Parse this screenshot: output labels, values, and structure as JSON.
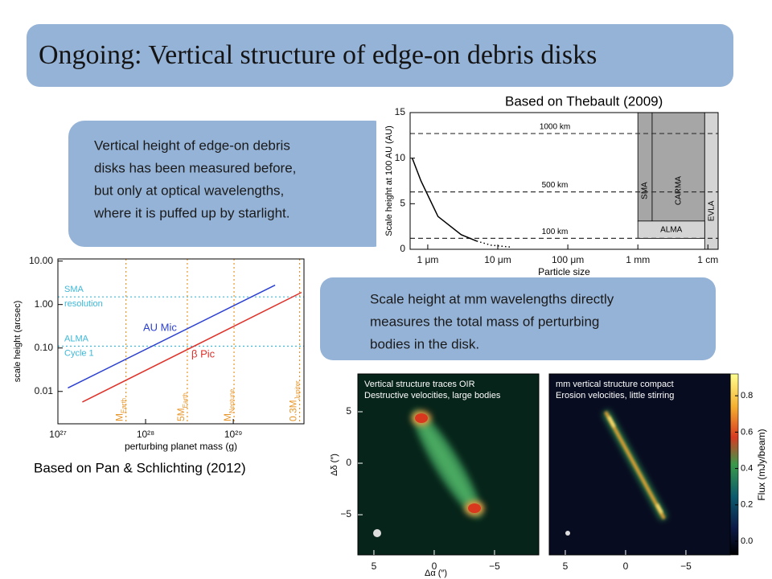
{
  "title": "Ongoing: Vertical structure of edge-on debris disks",
  "captions": [
    "Based on Thebault (2009)",
    "Based on Pan & Schlichting (2012)"
  ],
  "text_boxes": [
    {
      "lines": [
        "Vertical height of edge-on debris",
        "disks has been measured before,",
        "but only at optical wavelengths,",
        "where it is puffed up by starlight."
      ]
    },
    {
      "lines": [
        "Scale height at mm wavelengths directly",
        "measures the total mass of perturbing",
        "bodies in the disk."
      ]
    }
  ],
  "chart_data": [
    {
      "type": "line",
      "x_label": "Particle size",
      "y_label": "Scale height at 100 AU (AU)",
      "log_x": true,
      "xlim": [
        0.56,
        14000
      ],
      "xticks": [
        {
          "value": 1,
          "label": "1 μm"
        },
        {
          "value": 10,
          "label": "10 μm"
        },
        {
          "value": 100,
          "label": "100 μm"
        },
        {
          "value": 1000,
          "label": "1 mm"
        },
        {
          "value": 10000,
          "label": "1 cm"
        }
      ],
      "ylim": [
        0,
        15
      ],
      "yticks": [
        0,
        5,
        10,
        15
      ],
      "series": [
        {
          "color": "#000000",
          "style": "solid",
          "x": [
            0.6,
            0.8,
            1.4,
            3,
            5
          ],
          "values": [
            10,
            7.5,
            3.6,
            1.6,
            0.9
          ]
        },
        {
          "color": "#000000",
          "style": "dotted",
          "x": [
            5,
            8,
            15
          ],
          "values": [
            0.9,
            0.45,
            0.25
          ]
        }
      ],
      "hlines": [
        {
          "value": 12.7,
          "label": "1000 km"
        },
        {
          "value": 6.3,
          "label": "500 km"
        },
        {
          "value": 1.2,
          "label": "100 km"
        }
      ],
      "regions": [
        {
          "label": "SMA",
          "x": [
            1000,
            1600
          ],
          "y": [
            3.1,
            15
          ],
          "color": "#a6a6a6"
        },
        {
          "label": "CARMA",
          "x": [
            1600,
            9000
          ],
          "y": [
            3.1,
            15
          ],
          "color": "#a6a6a6"
        },
        {
          "label": "EVLA",
          "x": [
            9000,
            14000
          ],
          "y": [
            0,
            15
          ],
          "color": "#d4d4d4"
        },
        {
          "label": "ALMA",
          "x": [
            1000,
            9000
          ],
          "y": [
            1.2,
            3.1
          ],
          "color": "#d4d4d4"
        }
      ]
    },
    {
      "type": "line",
      "x_label": "perturbing planet mass (g)",
      "y_label": "scale height (arcsec)",
      "log_x": true,
      "log_y": true,
      "xlim": [
        1e+27,
        6.4e+29
      ],
      "xticks": [
        {
          "value": 1e+27,
          "label": "10²⁷"
        },
        {
          "value": 1e+28,
          "label": "10²⁸"
        },
        {
          "value": 1e+29,
          "label": "10²⁹"
        }
      ],
      "ylim": [
        0.0018,
        11.2
      ],
      "yticks": [
        {
          "value": 0.01,
          "label": "0.01"
        },
        {
          "value": 0.1,
          "label": "0.10"
        },
        {
          "value": 1,
          "label": "1.00"
        },
        {
          "value": 10,
          "label": "10.00"
        }
      ],
      "series": [
        {
          "name": "AU Mic",
          "color": "#2b3fd0",
          "style": "solid",
          "x": [
            1.3e+27,
            3e+29
          ],
          "values": [
            0.012,
            2.8
          ]
        },
        {
          "name": "β Pic",
          "color": "#e0302a",
          "style": "solid",
          "x": [
            1.9e+27,
            6e+29
          ],
          "values": [
            0.0057,
            1.9
          ]
        }
      ],
      "hlines": [
        {
          "value": 1.5,
          "label": [
            "SMA",
            "resolution"
          ],
          "color": "#3cb8d8"
        },
        {
          "value": 0.11,
          "label": [
            "ALMA",
            "Cycle 1"
          ],
          "color": "#3cb8d8"
        }
      ],
      "vlines": [
        {
          "value": 5.97e+27,
          "label": "M",
          "subscript": "Earth",
          "color": "#e8962a"
        },
        {
          "value": 2.99e+28,
          "label": "5M",
          "subscript": "Earth",
          "color": "#e8962a"
        },
        {
          "value": 1.02e+29,
          "label": "M",
          "subscript": "Neptune",
          "color": "#e8962a"
        },
        {
          "value": 5.7e+29,
          "label": "0.3M",
          "subscript": "Jupiter",
          "color": "#e8962a"
        }
      ]
    }
  ],
  "maps": {
    "panels": [
      {
        "lines": [
          "Vertical structure traces OIR",
          "Destructive velocities, large bodies"
        ]
      },
      {
        "lines": [
          "mm vertical structure compact",
          "Erosion velocities, little stirring"
        ]
      }
    ],
    "x_label": "Δα (″)",
    "y_label": "Δδ (″)",
    "xlim": [
      6.33,
      -8.67
    ],
    "ylim": [
      -8.9,
      8.67
    ],
    "xticks": [
      5,
      0,
      {
        "value": -5,
        "label": "−5"
      }
    ],
    "yticks": [
      5,
      0,
      {
        "value": -5,
        "label": "−5"
      }
    ],
    "colorbar": {
      "label": "Flux (mJy/beam)",
      "clim": [
        -0.075,
        0.92
      ],
      "ticks": [
        {
          "value": 0,
          "label": "0.0"
        },
        0.2,
        0.4,
        0.6,
        0.8
      ]
    }
  }
}
